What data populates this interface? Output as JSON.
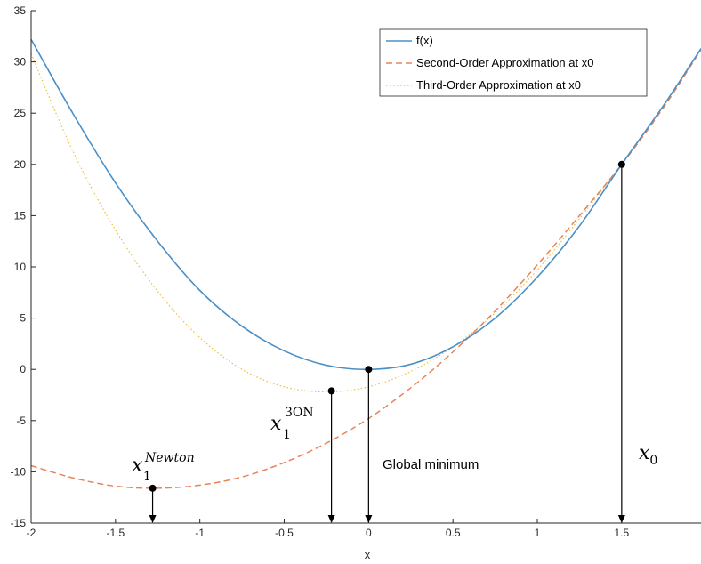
{
  "chart_data": {
    "type": "line",
    "title": "",
    "xlabel": "x",
    "ylabel": "",
    "xlim": [
      -2,
      1.97
    ],
    "ylim": [
      -15,
      35
    ],
    "x_ticks": [
      -2,
      -1.5,
      -1,
      -0.5,
      0,
      0.5,
      1,
      1.5
    ],
    "x_tick_labels": [
      "-2",
      "-1.5",
      "-1",
      "-0.5",
      "0",
      "0.5",
      "1",
      "1.5"
    ],
    "y_ticks": [
      -15,
      -10,
      -5,
      0,
      5,
      10,
      15,
      20,
      25,
      30,
      35
    ],
    "y_tick_labels": [
      "-15",
      "-10",
      "-5",
      "0",
      "5",
      "10",
      "15",
      "20",
      "25",
      "30",
      "35"
    ],
    "grid": false,
    "legend_position": "top-right",
    "series": [
      {
        "name": "f(x)",
        "style": "solid",
        "color": "#4a90c8",
        "x": [
          -2,
          -1.75,
          -1.5,
          -1.25,
          -1,
          -0.75,
          -0.5,
          -0.25,
          0,
          0.25,
          0.5,
          0.75,
          1,
          1.25,
          1.5,
          1.75,
          1.97
        ],
        "y": [
          32.2,
          24.9,
          18.2,
          12.5,
          7.7,
          4.2,
          1.8,
          0.4,
          0,
          0.5,
          2.2,
          5.0,
          9.0,
          14.0,
          20.0,
          25.8,
          31.3
        ]
      },
      {
        "name": "Second-Order Approximation at x0",
        "style": "dashed",
        "color": "#e8825a",
        "x": [
          -2,
          -1.75,
          -1.5,
          -1.25,
          -1,
          -0.75,
          -0.5,
          -0.25,
          0,
          0.25,
          0.5,
          0.75,
          1,
          1.25,
          1.5,
          1.75,
          1.97
        ],
        "y": [
          -9.4,
          -10.6,
          -11.4,
          -11.6,
          -11.3,
          -10.5,
          -9.1,
          -7.2,
          -4.8,
          -1.8,
          1.7,
          5.7,
          10.2,
          15.0,
          20.0,
          25.6,
          31.2
        ]
      },
      {
        "name": "Third-Order Approximation at x0",
        "style": "dotted",
        "color": "#e8c040",
        "x": [
          -2,
          -1.75,
          -1.5,
          -1.25,
          -1,
          -0.75,
          -0.5,
          -0.25,
          0,
          0.25,
          0.5,
          0.75,
          1,
          1.25,
          1.5,
          1.75,
          1.97
        ],
        "y": [
          30.8,
          21.2,
          13.6,
          7.6,
          3.1,
          0.0,
          -1.7,
          -2.2,
          -1.7,
          -0.2,
          2.2,
          5.5,
          9.7,
          14.7,
          20.0,
          25.7,
          31.2
        ]
      }
    ],
    "points": [
      {
        "name": "x1-newton-point",
        "x": -1.28,
        "y": -11.6
      },
      {
        "name": "x1-3on-point",
        "x": -0.22,
        "y": -2.1
      },
      {
        "name": "global-minimum-point",
        "x": 0,
        "y": 0
      },
      {
        "name": "x0-point",
        "x": 1.5,
        "y": 20
      }
    ],
    "arrows": [
      {
        "name": "x1-newton-arrow",
        "x": -1.28,
        "y_from": -11.6,
        "y_to": -15
      },
      {
        "name": "x1-3on-arrow",
        "x": -0.22,
        "y_from": -2.1,
        "y_to": -15
      },
      {
        "name": "global-minimum-arrow",
        "x": 0,
        "y_from": 0,
        "y_to": -15
      },
      {
        "name": "x0-arrow",
        "x": 1.5,
        "y_from": 20,
        "y_to": -15
      }
    ],
    "annotations": {
      "global_minimum": "Global minimum",
      "x0_base": "x",
      "x0_sub": "0",
      "newton_base": "x",
      "newton_sub": "1",
      "newton_sup": "Newton",
      "three_on_base": "x",
      "three_on_sub": "1",
      "three_on_sup": "3ON"
    }
  }
}
